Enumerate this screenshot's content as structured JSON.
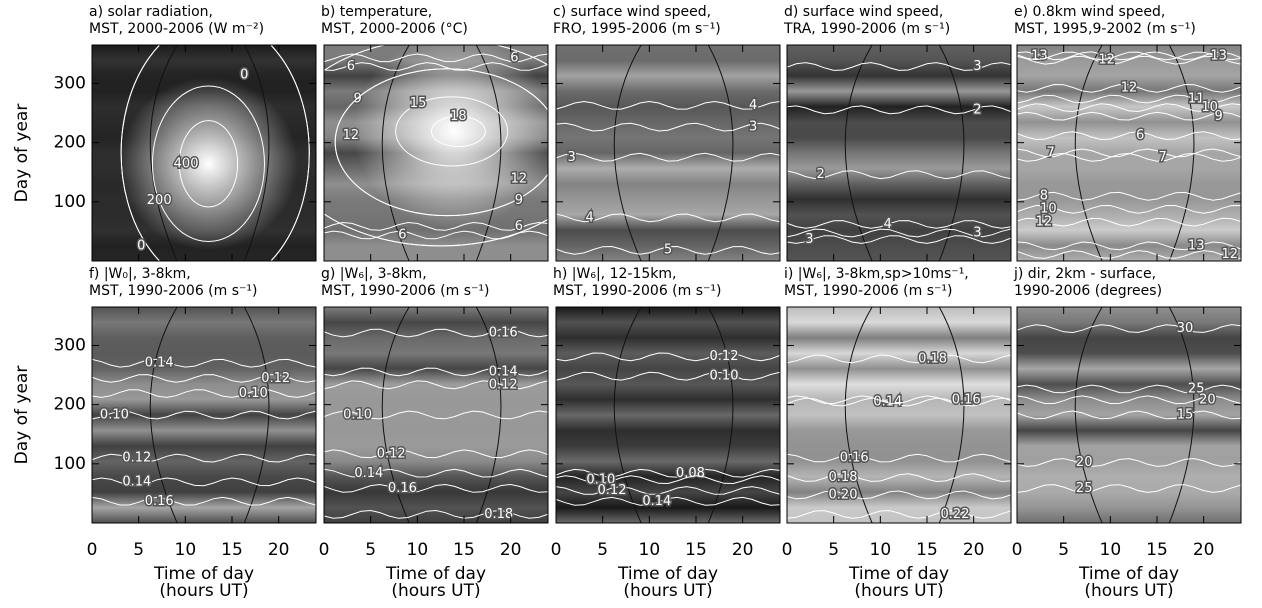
{
  "chart_data": [
    {
      "type": "contour",
      "title": [
        "a) solar radiation,",
        "MST, 2000-2006 (W m⁻²)"
      ],
      "ylabel": "Day of year",
      "xlim": [
        0,
        24
      ],
      "xticks": [
        0,
        5,
        10,
        15,
        20
      ],
      "ylim": [
        0,
        365
      ],
      "yticks": [
        100,
        200,
        300
      ],
      "contour_labels": [
        0,
        400,
        200,
        0
      ]
    },
    {
      "type": "contour",
      "title": [
        "b) temperature,",
        "MST, 2000-2006 (°C)"
      ],
      "xlim": [
        0,
        24
      ],
      "xticks": [
        0,
        5,
        10,
        15,
        20
      ],
      "ylim": [
        0,
        365
      ],
      "yticks": [
        100,
        200,
        300
      ],
      "contour_labels": [
        6,
        6,
        9,
        12,
        15,
        18,
        12,
        9,
        6,
        6
      ]
    },
    {
      "type": "contour",
      "title": [
        "c) surface wind speed,",
        "FRO, 1995-2006 (m s⁻¹)"
      ],
      "xlim": [
        0,
        24
      ],
      "xticks": [
        0,
        5,
        10,
        15,
        20
      ],
      "ylim": [
        0,
        365
      ],
      "yticks": [
        100,
        200,
        300
      ],
      "contour_labels": [
        4,
        3,
        3,
        4,
        5
      ]
    },
    {
      "type": "contour",
      "title": [
        "d) surface wind speed,",
        "TRA, 1990-2006 (m s⁻¹)"
      ],
      "xlim": [
        0,
        24
      ],
      "xticks": [
        0,
        5,
        10,
        15,
        20
      ],
      "ylim": [
        0,
        365
      ],
      "yticks": [
        100,
        200,
        300
      ],
      "contour_labels": [
        3,
        2,
        2,
        4,
        3,
        3
      ]
    },
    {
      "type": "contour",
      "title": [
        "e) 0.8km wind speed,",
        "MST, 1995,9-2002 (m s⁻¹)"
      ],
      "xlim": [
        0,
        24
      ],
      "xticks": [
        0,
        5,
        10,
        15,
        20
      ],
      "ylim": [
        0,
        365
      ],
      "yticks": [
        100,
        200,
        300
      ],
      "contour_labels": [
        13,
        12,
        13,
        12,
        11,
        10,
        9,
        7,
        6,
        7,
        8,
        10,
        12,
        13,
        12
      ]
    },
    {
      "type": "contour",
      "title": [
        "f) |W₀|, 3-8km,",
        "MST, 1990-2006 (m s⁻¹)"
      ],
      "ylabel": "Day of year",
      "xlabel": [
        "Time of day",
        "(hours UT)"
      ],
      "xlim": [
        0,
        24
      ],
      "xticks": [
        0,
        5,
        10,
        15,
        20
      ],
      "ylim": [
        0,
        365
      ],
      "yticks": [
        100,
        200,
        300
      ],
      "contour_labels": [
        0.14,
        0.12,
        {
          "value": 0.1,
          "label": "0.10"
        },
        {
          "value": 0.1,
          "label": "0.10"
        },
        0.12,
        0.14,
        0.16
      ]
    },
    {
      "type": "contour",
      "title": [
        "g) |W₆|, 3-8km,",
        "MST, 1990-2006 (m s⁻¹)"
      ],
      "xlabel": [
        "Time of day",
        "(hours UT)"
      ],
      "xlim": [
        0,
        24
      ],
      "xticks": [
        0,
        5,
        10,
        15,
        20
      ],
      "ylim": [
        0,
        365
      ],
      "yticks": [
        100,
        200,
        300
      ],
      "contour_labels": [
        0.16,
        0.14,
        0.12,
        {
          "value": 0.1,
          "label": "0.10"
        },
        0.12,
        0.14,
        0.16,
        0.18
      ]
    },
    {
      "type": "contour",
      "title": [
        "h) |W₆|, 12-15km,",
        "MST, 1990-2006 (m s⁻¹)"
      ],
      "xlabel": [
        "Time of day",
        "(hours UT)"
      ],
      "xlim": [
        0,
        24
      ],
      "xticks": [
        0,
        5,
        10,
        15,
        20
      ],
      "ylim": [
        0,
        365
      ],
      "yticks": [
        100,
        200,
        300
      ],
      "contour_labels": [
        0.12,
        {
          "value": 0.1,
          "label": "0.10"
        },
        0.08,
        {
          "value": 0.1,
          "label": "0.10"
        },
        0.12,
        0.14
      ]
    },
    {
      "type": "contour",
      "title": [
        "i) |W₆|, 3-8km,sp>10ms⁻¹,",
        "MST, 1990-2006 (m s⁻¹)"
      ],
      "xlabel": [
        "Time of day",
        "(hours UT)"
      ],
      "xlim": [
        0,
        24
      ],
      "xticks": [
        0,
        5,
        10,
        15,
        20
      ],
      "ylim": [
        0,
        365
      ],
      "yticks": [
        100,
        200,
        300
      ],
      "contour_labels": [
        0.18,
        0.14,
        0.16,
        0.16,
        0.18,
        {
          "value": 0.2,
          "label": "0.20"
        },
        0.22
      ]
    },
    {
      "type": "contour",
      "title": [
        "j) dir, 2km - surface,",
        "1990-2006 (degrees)"
      ],
      "xlabel": [
        "Time of day",
        "(hours UT)"
      ],
      "xlim": [
        0,
        24
      ],
      "xticks": [
        0,
        5,
        10,
        15,
        20
      ],
      "ylim": [
        0,
        365
      ],
      "yticks": [
        100,
        200,
        300
      ],
      "contour_labels": [
        30,
        25,
        20,
        15,
        20,
        25
      ]
    }
  ]
}
